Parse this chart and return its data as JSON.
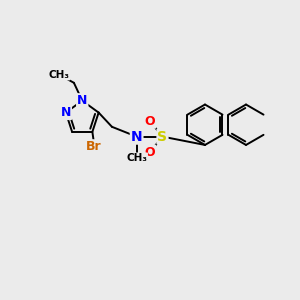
{
  "background_color": "#ebebeb",
  "bond_color": "#000000",
  "atom_colors": {
    "N": "#0000ff",
    "Br": "#cc6600",
    "S": "#cccc00",
    "O": "#ff0000",
    "C": "#000000"
  },
  "figsize": [
    3.0,
    3.0
  ],
  "dpi": 100,
  "bond_lw": 1.4,
  "font_size": 9
}
